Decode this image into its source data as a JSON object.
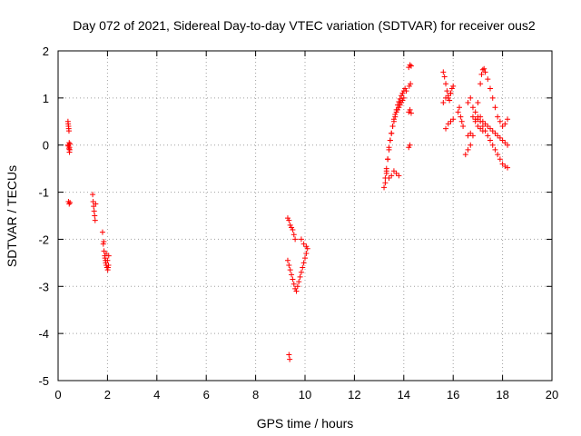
{
  "chart_data": {
    "type": "scatter",
    "title": "Day 072 of 2021, Sidereal Day-to-day VTEC variation (SDTVAR) for receiver ous2",
    "xlabel": "GPS time / hours",
    "ylabel": "SDTVAR / TECUs",
    "xlim": [
      0,
      20
    ],
    "ylim": [
      -5,
      2
    ],
    "xticks": [
      0,
      2,
      4,
      6,
      8,
      10,
      12,
      14,
      16,
      18,
      20
    ],
    "yticks": [
      -5,
      -4,
      -3,
      -2,
      -1,
      0,
      1,
      2
    ],
    "grid": true,
    "marker": "+",
    "color": "#ff0000",
    "series": [
      {
        "name": "SDTVAR",
        "x": [
          0.4,
          0.41,
          0.42,
          0.43,
          0.44,
          0.45,
          0.46,
          0.47,
          0.4,
          0.42,
          0.44,
          0.46,
          0.48,
          0.42,
          0.45,
          0.48,
          1.4,
          1.42,
          1.44,
          1.46,
          1.48,
          1.5,
          1.52,
          1.8,
          1.83,
          1.86,
          1.89,
          1.92,
          1.95,
          1.98,
          2.01,
          2.04,
          1.9,
          1.95,
          2.0,
          2.05,
          1.85,
          1.93,
          2.02,
          9.3,
          9.35,
          9.4,
          9.45,
          9.5,
          9.55,
          9.6,
          9.3,
          9.35,
          9.4,
          9.45,
          9.5,
          9.55,
          9.6,
          9.65,
          9.7,
          9.75,
          9.8,
          9.85,
          9.9,
          9.95,
          10.0,
          10.05,
          10.1,
          9.85,
          9.95,
          10.05,
          9.35,
          9.38,
          13.2,
          13.25,
          13.3,
          13.35,
          13.4,
          13.45,
          13.5,
          13.55,
          13.6,
          13.65,
          13.7,
          13.75,
          13.8,
          13.85,
          13.9,
          13.95,
          14.0,
          14.05,
          14.1,
          13.25,
          13.3,
          13.35,
          13.4,
          13.45,
          13.5,
          13.55,
          13.6,
          13.65,
          13.7,
          13.75,
          13.8,
          13.85,
          13.9,
          13.95,
          14.0,
          13.3,
          13.4,
          13.5,
          13.6,
          13.7,
          13.8,
          14.2,
          14.25,
          14.3,
          14.2,
          14.25,
          14.3,
          14.2,
          14.25,
          14.22,
          14.27,
          15.6,
          15.65,
          15.7,
          15.75,
          15.8,
          15.85,
          15.9,
          15.95,
          16.0,
          15.7,
          15.8,
          15.9,
          16.0,
          15.6,
          15.7,
          15.8,
          15.9,
          16.2,
          16.25,
          16.3,
          16.35,
          16.4,
          16.5,
          16.6,
          16.7,
          16.8,
          16.9,
          17.0,
          17.1,
          17.15,
          17.2,
          17.25,
          17.3,
          17.4,
          17.5,
          17.6,
          17.7,
          17.8,
          17.9,
          18.0,
          18.1,
          18.2,
          16.6,
          16.7,
          16.8,
          16.9,
          17.0,
          17.1,
          17.2,
          17.3,
          17.4,
          17.5,
          17.6,
          17.7,
          17.8,
          17.9,
          18.0,
          18.1,
          18.2,
          17.0,
          17.1,
          17.2,
          17.3,
          17.4,
          17.5,
          17.6,
          17.7,
          17.8,
          17.9,
          18.0,
          18.1,
          18.2,
          16.8,
          16.9,
          17.0,
          17.1,
          17.2,
          16.6,
          16.7
        ],
        "y": [
          0.5,
          0.45,
          0.4,
          0.35,
          0.3,
          0.05,
          -0.05,
          -0.1,
          0.0,
          -0.02,
          -0.08,
          -0.15,
          0.02,
          -1.2,
          -1.25,
          -1.22,
          -1.05,
          -1.2,
          -1.3,
          -1.4,
          -1.5,
          -1.6,
          -1.25,
          -1.85,
          -2.1,
          -2.25,
          -2.35,
          -2.45,
          -2.55,
          -2.6,
          -2.65,
          -2.55,
          -2.4,
          -2.3,
          -2.45,
          -2.35,
          -2.05,
          -2.5,
          -2.6,
          -1.55,
          -1.6,
          -1.7,
          -1.75,
          -1.8,
          -1.9,
          -2.0,
          -2.45,
          -2.55,
          -2.65,
          -2.75,
          -2.85,
          -2.95,
          -3.05,
          -3.1,
          -3.0,
          -2.9,
          -2.8,
          -2.7,
          -2.6,
          -2.5,
          -2.4,
          -2.3,
          -2.2,
          -2.0,
          -2.1,
          -2.15,
          -4.45,
          -4.55,
          -0.9,
          -0.7,
          -0.5,
          -0.3,
          -0.1,
          0.1,
          0.25,
          0.4,
          0.55,
          0.65,
          0.75,
          0.85,
          0.92,
          0.98,
          1.05,
          1.1,
          1.15,
          1.2,
          1.15,
          -0.8,
          -0.55,
          -0.3,
          -0.05,
          0.1,
          0.25,
          0.4,
          0.5,
          0.6,
          0.7,
          0.75,
          0.8,
          0.85,
          0.9,
          0.95,
          1.0,
          -0.6,
          -0.7,
          -0.65,
          -0.55,
          -0.6,
          -0.65,
          1.65,
          1.7,
          1.68,
          0.7,
          0.75,
          0.68,
          -0.05,
          0.0,
          1.25,
          1.3,
          1.55,
          1.45,
          1.3,
          1.15,
          1.0,
          0.95,
          1.1,
          1.2,
          1.25,
          0.35,
          0.45,
          0.5,
          0.55,
          0.9,
          1.0,
          1.05,
          1.1,
          0.7,
          0.8,
          0.6,
          0.5,
          0.4,
          -0.2,
          -0.1,
          0.0,
          0.2,
          0.5,
          0.9,
          1.3,
          1.5,
          1.6,
          1.62,
          1.55,
          1.4,
          1.2,
          1.0,
          0.8,
          0.6,
          0.5,
          0.4,
          0.45,
          0.55,
          0.9,
          1.0,
          0.8,
          0.7,
          0.6,
          0.5,
          0.4,
          0.3,
          0.2,
          0.1,
          0.0,
          -0.1,
          -0.2,
          -0.3,
          -0.4,
          -0.45,
          -0.48,
          0.55,
          0.6,
          0.5,
          0.45,
          0.4,
          0.35,
          0.3,
          0.25,
          0.2,
          0.15,
          0.1,
          0.05,
          0.0,
          0.6,
          0.55,
          0.4,
          0.35,
          0.3,
          0.2,
          0.25
        ]
      }
    ]
  }
}
